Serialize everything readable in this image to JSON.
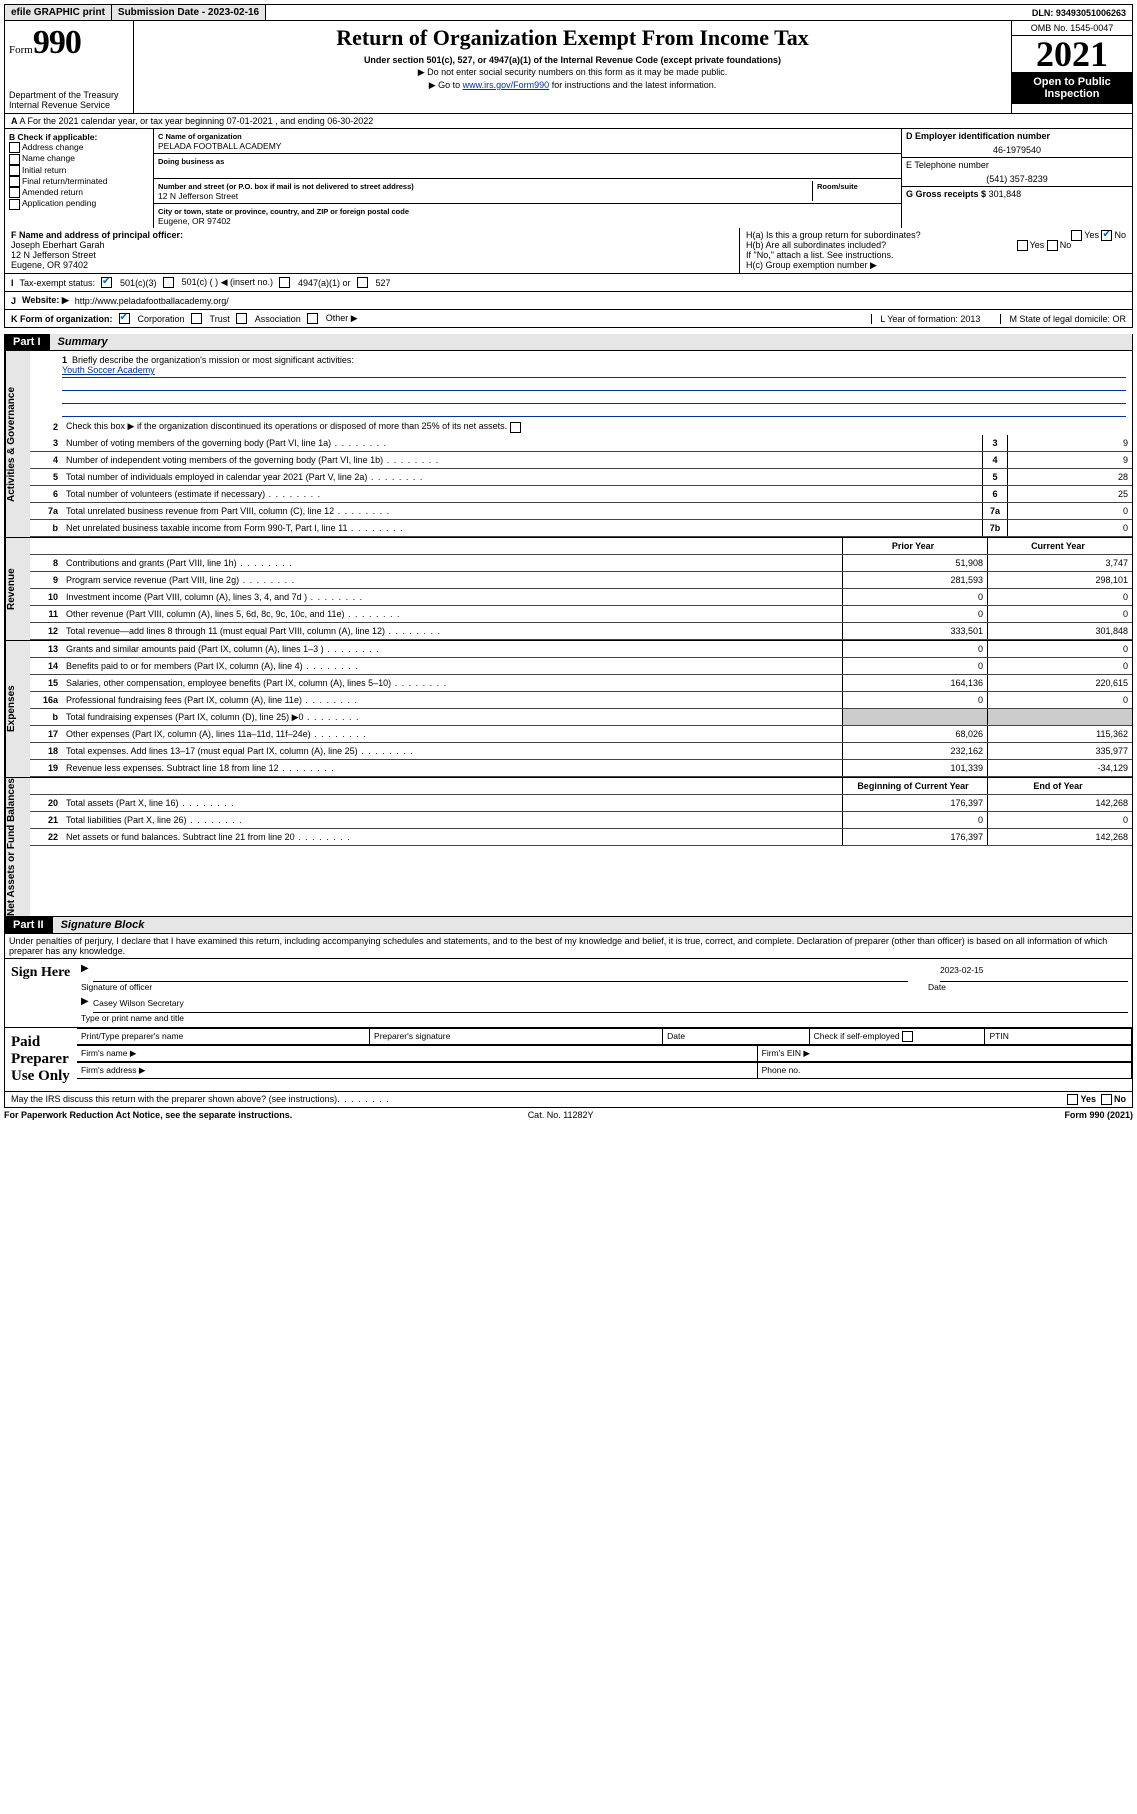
{
  "topbar": {
    "efile": "efile GRAPHIC print",
    "submission_label": "Submission Date - 2023-02-16",
    "dln": "DLN: 93493051006263"
  },
  "header": {
    "form_label": "Form",
    "form_no": "990",
    "dept": "Department of the Treasury",
    "irs": "Internal Revenue Service",
    "title": "Return of Organization Exempt From Income Tax",
    "sub": "Under section 501(c), 527, or 4947(a)(1) of the Internal Revenue Code (except private foundations)",
    "note1": "▶ Do not enter social security numbers on this form as it may be made public.",
    "note2_pre": "▶ Go to ",
    "note2_link": "www.irs.gov/Form990",
    "note2_post": " for instructions and the latest information.",
    "omb": "OMB No. 1545-0047",
    "year": "2021",
    "open": "Open to Public Inspection"
  },
  "rowA": "A For the 2021 calendar year, or tax year beginning 07-01-2021   , and ending 06-30-2022",
  "colB": {
    "label": "B Check if applicable:",
    "items": [
      "Address change",
      "Name change",
      "Initial return",
      "Final return/terminated",
      "Amended return",
      "Application pending"
    ]
  },
  "colC": {
    "name_label": "C Name of organization",
    "name": "PELADA FOOTBALL ACADEMY",
    "dba_label": "Doing business as",
    "street_label": "Number and street (or P.O. box if mail is not delivered to street address)",
    "room_label": "Room/suite",
    "street": "12 N Jefferson Street",
    "city_label": "City or town, state or province, country, and ZIP or foreign postal code",
    "city": "Eugene, OR  97402"
  },
  "colD": {
    "ein_label": "D Employer identification number",
    "ein": "46-1979540",
    "phone_label": "E Telephone number",
    "phone": "(541) 357-8239",
    "gross_label": "G Gross receipts $",
    "gross": "301,848"
  },
  "rowF": {
    "label": "F Name and address of principal officer:",
    "name": "Joseph Eberhart Garah",
    "addr1": "12 N Jefferson Street",
    "addr2": "Eugene, OR  97402"
  },
  "rowH": {
    "a": "H(a)  Is this a group return for subordinates?",
    "b": "H(b)  Are all subordinates included?",
    "b_note": "If \"No,\" attach a list. See instructions.",
    "c": "H(c)  Group exemption number ▶",
    "yes": "Yes",
    "no": "No"
  },
  "rowI": {
    "label": "Tax-exempt status:",
    "opts": [
      "501(c)(3)",
      "501(c) (   ) ◀ (insert no.)",
      "4947(a)(1) or",
      "527"
    ]
  },
  "rowJ": {
    "label": "Website: ▶",
    "val": "http://www.peladafootballacademy.org/"
  },
  "rowK": {
    "label": "K Form of organization:",
    "opts": [
      "Corporation",
      "Trust",
      "Association",
      "Other ▶"
    ],
    "L": "L Year of formation: 2013",
    "M": "M State of legal domicile: OR"
  },
  "part1": {
    "hdr": "Part I",
    "title": "Summary"
  },
  "summary": {
    "q1": "Briefly describe the organization's mission or most significant activities:",
    "mission": "Youth Soccer Academy",
    "q2": "Check this box ▶        if the organization discontinued its operations or disposed of more than 25% of its net assets.",
    "lines_a": [
      {
        "n": "3",
        "t": "Number of voting members of the governing body (Part VI, line 1a)",
        "b": "3",
        "v": "9"
      },
      {
        "n": "4",
        "t": "Number of independent voting members of the governing body (Part VI, line 1b)",
        "b": "4",
        "v": "9"
      },
      {
        "n": "5",
        "t": "Total number of individuals employed in calendar year 2021 (Part V, line 2a)",
        "b": "5",
        "v": "28"
      },
      {
        "n": "6",
        "t": "Total number of volunteers (estimate if necessary)",
        "b": "6",
        "v": "25"
      },
      {
        "n": "7a",
        "t": "Total unrelated business revenue from Part VIII, column (C), line 12",
        "b": "7a",
        "v": "0"
      },
      {
        "n": "b",
        "t": "Net unrelated business taxable income from Form 990-T, Part I, line 11",
        "b": "7b",
        "v": "0"
      }
    ],
    "col_prior": "Prior Year",
    "col_curr": "Current Year",
    "rev": [
      {
        "n": "8",
        "t": "Contributions and grants (Part VIII, line 1h)",
        "p": "51,908",
        "c": "3,747"
      },
      {
        "n": "9",
        "t": "Program service revenue (Part VIII, line 2g)",
        "p": "281,593",
        "c": "298,101"
      },
      {
        "n": "10",
        "t": "Investment income (Part VIII, column (A), lines 3, 4, and 7d )",
        "p": "0",
        "c": "0"
      },
      {
        "n": "11",
        "t": "Other revenue (Part VIII, column (A), lines 5, 6d, 8c, 9c, 10c, and 11e)",
        "p": "0",
        "c": "0"
      },
      {
        "n": "12",
        "t": "Total revenue—add lines 8 through 11 (must equal Part VIII, column (A), line 12)",
        "p": "333,501",
        "c": "301,848"
      }
    ],
    "exp": [
      {
        "n": "13",
        "t": "Grants and similar amounts paid (Part IX, column (A), lines 1–3 )",
        "p": "0",
        "c": "0"
      },
      {
        "n": "14",
        "t": "Benefits paid to or for members (Part IX, column (A), line 4)",
        "p": "0",
        "c": "0"
      },
      {
        "n": "15",
        "t": "Salaries, other compensation, employee benefits (Part IX, column (A), lines 5–10)",
        "p": "164,136",
        "c": "220,615"
      },
      {
        "n": "16a",
        "t": "Professional fundraising fees (Part IX, column (A), line 11e)",
        "p": "0",
        "c": "0"
      },
      {
        "n": "b",
        "t": "Total fundraising expenses (Part IX, column (D), line 25) ▶0",
        "p": "shade",
        "c": "shade"
      },
      {
        "n": "17",
        "t": "Other expenses (Part IX, column (A), lines 11a–11d, 11f–24e)",
        "p": "68,026",
        "c": "115,362"
      },
      {
        "n": "18",
        "t": "Total expenses. Add lines 13–17 (must equal Part IX, column (A), line 25)",
        "p": "232,162",
        "c": "335,977"
      },
      {
        "n": "19",
        "t": "Revenue less expenses. Subtract line 18 from line 12",
        "p": "101,339",
        "c": "-34,129"
      }
    ],
    "col_begin": "Beginning of Current Year",
    "col_end": "End of Year",
    "net": [
      {
        "n": "20",
        "t": "Total assets (Part X, line 16)",
        "p": "176,397",
        "c": "142,268"
      },
      {
        "n": "21",
        "t": "Total liabilities (Part X, line 26)",
        "p": "0",
        "c": "0"
      },
      {
        "n": "22",
        "t": "Net assets or fund balances. Subtract line 21 from line 20",
        "p": "176,397",
        "c": "142,268"
      }
    ]
  },
  "sides": {
    "gov": "Activities & Governance",
    "rev": "Revenue",
    "exp": "Expenses",
    "net": "Net Assets or Fund Balances"
  },
  "part2": {
    "hdr": "Part II",
    "title": "Signature Block"
  },
  "sig": {
    "intro": "Under penalties of perjury, I declare that I have examined this return, including accompanying schedules and statements, and to the best of my knowledge and belief, it is true, correct, and complete. Declaration of preparer (other than officer) is based on all information of which preparer has any knowledge.",
    "sign_here": "Sign Here",
    "sig_officer": "Signature of officer",
    "date_label": "Date",
    "date": "2023-02-15",
    "name": "Casey Wilson Secretary",
    "name_label": "Type or print name and title",
    "paid": "Paid Preparer Use Only",
    "p_name": "Print/Type preparer's name",
    "p_sig": "Preparer's signature",
    "p_date": "Date",
    "p_check": "Check        if self-employed",
    "ptin": "PTIN",
    "firm_name": "Firm's name   ▶",
    "firm_ein": "Firm's EIN ▶",
    "firm_addr": "Firm's address ▶",
    "phone": "Phone no."
  },
  "footer": {
    "discuss": "May the IRS discuss this return with the preparer shown above? (see instructions)",
    "paperwork": "For Paperwork Reduction Act Notice, see the separate instructions.",
    "cat": "Cat. No. 11282Y",
    "form": "Form 990 (2021)",
    "yes": "Yes",
    "no": "No"
  }
}
